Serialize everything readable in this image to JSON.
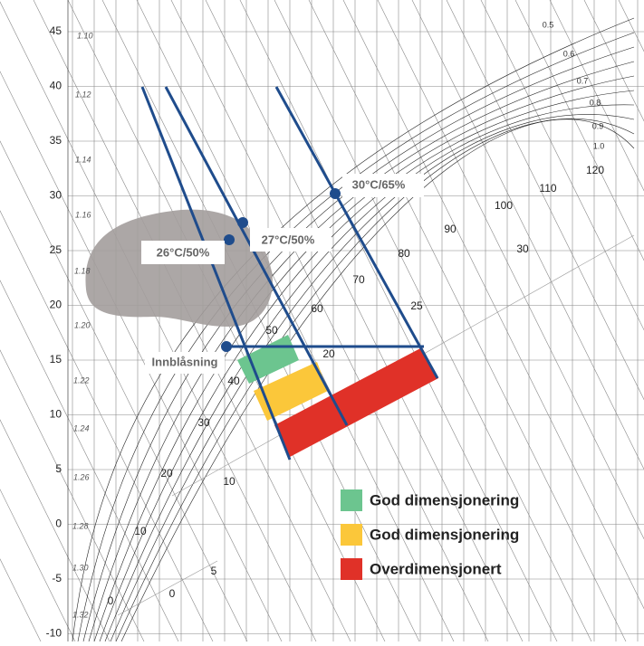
{
  "temperature_ticks": [
    "45",
    "40",
    "35",
    "30",
    "25",
    "20",
    "15",
    "10",
    "5",
    "0",
    "-5",
    "-10"
  ],
  "density_labels": [
    "1.10",
    "1.12",
    "1.14",
    "1.16",
    "1.18",
    "1.20",
    "1.22",
    "1.24",
    "1.26",
    "1.28",
    "1.30",
    "1.32"
  ],
  "enthalpy_labels": [
    "0",
    "10",
    "20",
    "30",
    "40",
    "50",
    "60",
    "70",
    "80",
    "90",
    "100",
    "110",
    "120"
  ],
  "humidity_labels": [
    "0.5",
    "0.6",
    "0.7",
    "0.8",
    "0.9",
    "1.0"
  ],
  "moisture_labels": [
    "0",
    "5",
    "10",
    "20",
    "25",
    "30"
  ],
  "annotations": [
    "26°C/50%",
    "27°C/50%",
    "30°C/65%",
    "Innblåsning"
  ],
  "legend": [
    {
      "label": "God dimensjonering",
      "color": "#6cc58f"
    },
    {
      "label": "God dimensjonering",
      "color": "#fbc73a"
    },
    {
      "label": "Overdimensjonert",
      "color": "#e03128"
    }
  ]
}
